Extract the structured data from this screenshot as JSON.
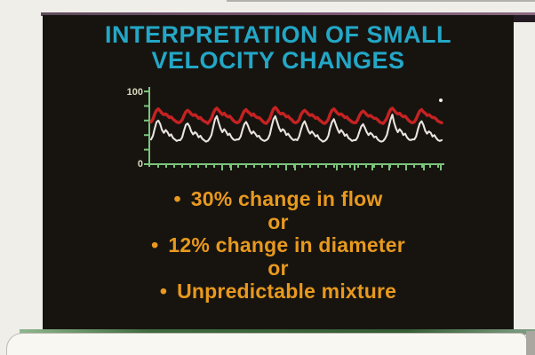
{
  "slide": {
    "title": {
      "line1": "INTERPRETATION OF SMALL",
      "line2": "VELOCITY CHANGES",
      "color": "#23a7c6"
    },
    "bullets": {
      "color": "#e8991e",
      "marker": "•",
      "items": [
        {
          "kind": "bullet",
          "text": "30% change in flow"
        },
        {
          "kind": "connector",
          "text": "or"
        },
        {
          "kind": "bullet",
          "text": "12% change in diameter"
        },
        {
          "kind": "connector",
          "text": "or"
        },
        {
          "kind": "bullet",
          "text": "Unpredictable mixture"
        }
      ]
    }
  },
  "chart_data": {
    "type": "line",
    "title": "",
    "xlabel": "",
    "ylabel": "",
    "ylim": [
      0,
      100
    ],
    "yticks": [
      0,
      20,
      40,
      60,
      80,
      100
    ],
    "ytick_labels_shown": {
      "top": "100",
      "bottom": "0"
    },
    "x_axis": {
      "tick_marks": true,
      "labels": "none"
    },
    "grid": false,
    "legend": "none",
    "axis_color": "#7cc47c",
    "tick_label_color": "#d8d8bc",
    "series": [
      {
        "name": "upper-velocity-trace",
        "color": "#c62222",
        "stroke_width": 3.4,
        "values": [
          58,
          62,
          69,
          74,
          76,
          73,
          70,
          68,
          69,
          67,
          64,
          65,
          62,
          60,
          58,
          57,
          58,
          61,
          67,
          72,
          74,
          72,
          69,
          67,
          68,
          66,
          63,
          64,
          61,
          59,
          58,
          56,
          59,
          63,
          70,
          75,
          77,
          74,
          71,
          68,
          70,
          67,
          65,
          66,
          63,
          60,
          58,
          57,
          58,
          62,
          68,
          73,
          75,
          72,
          70,
          67,
          69,
          66,
          64,
          64,
          62,
          59,
          57,
          56,
          59,
          63,
          70,
          76,
          78,
          75,
          71,
          69,
          70,
          68,
          65,
          66,
          63,
          61,
          58,
          57,
          58,
          61,
          68,
          72,
          74,
          72,
          69,
          67,
          68,
          66,
          63,
          64,
          61,
          59,
          57,
          56,
          58,
          62,
          69,
          74,
          76,
          73,
          70,
          68,
          69,
          67,
          64,
          65,
          62,
          60,
          58,
          57,
          57,
          61,
          67,
          71,
          73,
          71,
          68,
          66,
          67,
          65,
          63,
          63,
          61,
          58,
          57,
          56,
          59,
          63,
          70,
          75,
          77,
          74,
          71,
          69,
          70,
          67,
          65,
          66,
          63,
          60,
          58,
          57,
          58,
          62,
          68,
          73,
          75,
          72,
          70,
          67,
          68,
          66,
          64,
          64,
          62,
          59,
          58,
          57
        ]
      },
      {
        "name": "lower-velocity-trace",
        "color": "#e9e4de",
        "stroke_width": 2.1,
        "values": [
          34,
          39,
          49,
          58,
          60,
          55,
          47,
          43,
          47,
          44,
          39,
          41,
          36,
          34,
          32,
          33,
          33,
          37,
          46,
          54,
          56,
          52,
          45,
          41,
          44,
          42,
          37,
          39,
          35,
          33,
          31,
          32,
          35,
          40,
          51,
          62,
          66,
          57,
          49,
          44,
          48,
          45,
          40,
          42,
          37,
          34,
          33,
          34,
          34,
          38,
          47,
          55,
          58,
          53,
          46,
          42,
          45,
          42,
          38,
          39,
          35,
          33,
          32,
          33,
          35,
          41,
          52,
          62,
          66,
          58,
          50,
          45,
          48,
          46,
          40,
          42,
          38,
          35,
          33,
          34,
          33,
          38,
          47,
          55,
          59,
          53,
          46,
          42,
          45,
          42,
          38,
          40,
          35,
          33,
          31,
          32,
          34,
          39,
          50,
          58,
          62,
          55,
          48,
          43,
          47,
          44,
          39,
          41,
          36,
          34,
          32,
          33,
          33,
          37,
          45,
          52,
          55,
          50,
          44,
          40,
          43,
          41,
          37,
          38,
          34,
          32,
          31,
          32,
          35,
          40,
          51,
          61,
          68,
          57,
          49,
          44,
          48,
          45,
          40,
          42,
          37,
          34,
          33,
          34,
          34,
          38,
          48,
          56,
          59,
          54,
          46,
          42,
          45,
          43,
          38,
          40,
          36,
          33,
          32,
          33
        ]
      }
    ]
  }
}
